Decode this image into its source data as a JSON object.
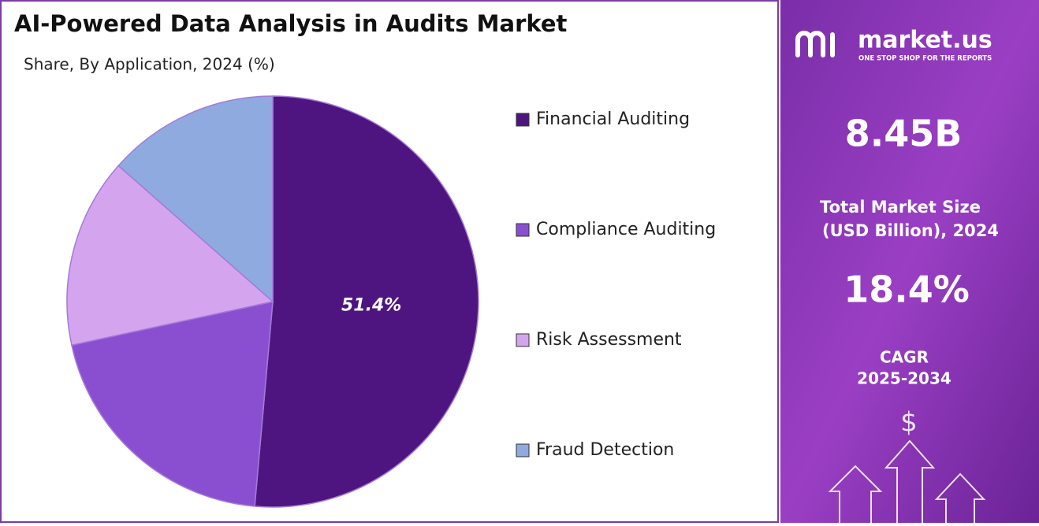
{
  "chart_data": {
    "type": "pie",
    "title": "AI-Powered Data Analysis in Audits Market",
    "subtitle": "Share, By Application, 2024 (%)",
    "categories": [
      "Financial Auditing",
      "Compliance Auditing",
      "Risk Assessment",
      "Fraud Detection"
    ],
    "values": [
      51.4,
      20.2,
      14.9,
      13.5
    ],
    "value_labels": [
      "51.4%",
      null,
      null,
      null
    ],
    "colors": [
      "#4e1581",
      "#8a4fd1",
      "#d4a5ee",
      "#8eaadf"
    ]
  },
  "panel": {
    "brand": "market.us",
    "tagline": "ONE STOP SHOP FOR THE REPORTS",
    "market_size": "8.45B",
    "market_size_label_1": "Total Market Size",
    "market_size_label_2": "(USD Billion), 2024",
    "cagr": "18.4%",
    "cagr_label_1": "CAGR",
    "cagr_label_2": "2025-2034"
  }
}
